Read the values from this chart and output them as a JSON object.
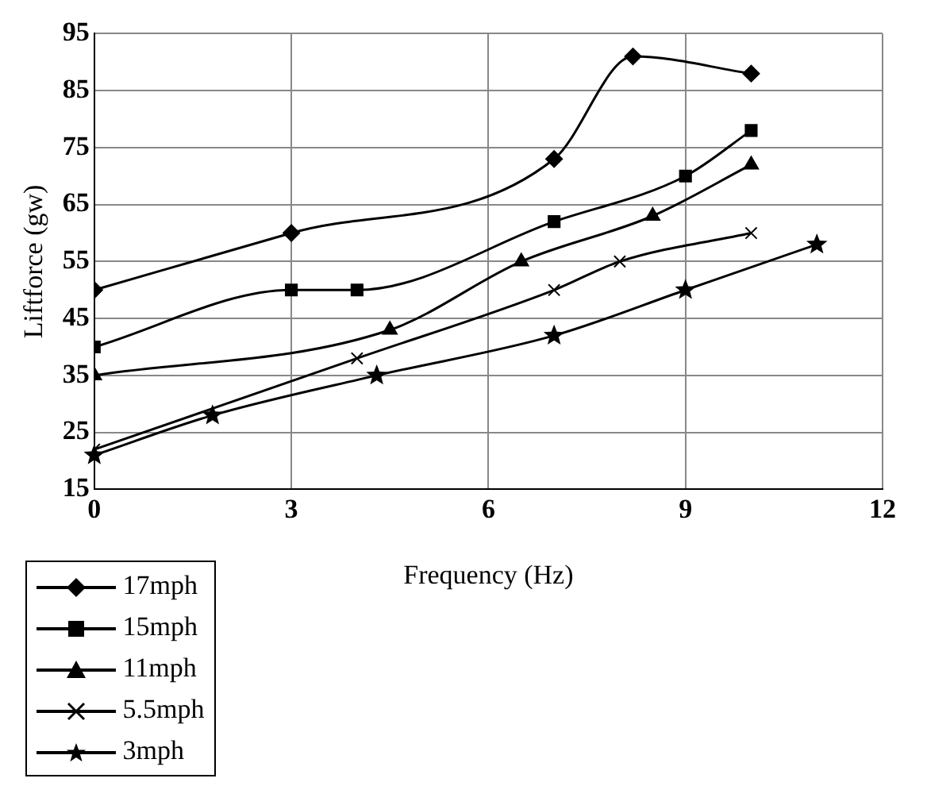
{
  "chart_data": {
    "type": "line",
    "xlabel": "Frequency (Hz)",
    "ylabel": "Liftforce (gw)",
    "xlim": [
      0,
      12
    ],
    "xticks": [
      0,
      3,
      6,
      9,
      12
    ],
    "ylim": [
      15,
      95
    ],
    "yticks": [
      15,
      25,
      35,
      45,
      55,
      65,
      75,
      85,
      95
    ],
    "grid": true,
    "legend": "bottom left",
    "series": [
      {
        "name": "17mph",
        "color": "#000000",
        "marker": "diamond",
        "x": [
          0,
          3,
          7,
          8.2,
          10
        ],
        "values": [
          50,
          60,
          73,
          91,
          88
        ]
      },
      {
        "name": "15mph",
        "color": "#000000",
        "marker": "square",
        "x": [
          0,
          3,
          4,
          7,
          9,
          10
        ],
        "values": [
          40,
          50,
          50,
          62,
          70,
          78
        ]
      },
      {
        "name": "11mph",
        "color": "#000000",
        "marker": "triangle",
        "x": [
          0,
          4.5,
          6.5,
          8.5,
          10
        ],
        "values": [
          35,
          43,
          55,
          63,
          72
        ]
      },
      {
        "name": "5.5mph",
        "color": "#000000",
        "marker": "cross",
        "x": [
          0,
          4,
          7,
          8,
          10
        ],
        "values": [
          22,
          38,
          50,
          55,
          60
        ]
      },
      {
        "name": "3mph",
        "color": "#000000",
        "marker": "star",
        "x": [
          0,
          1.8,
          4.3,
          7,
          9,
          11
        ],
        "values": [
          21,
          28,
          35,
          42,
          50,
          58
        ]
      }
    ]
  }
}
